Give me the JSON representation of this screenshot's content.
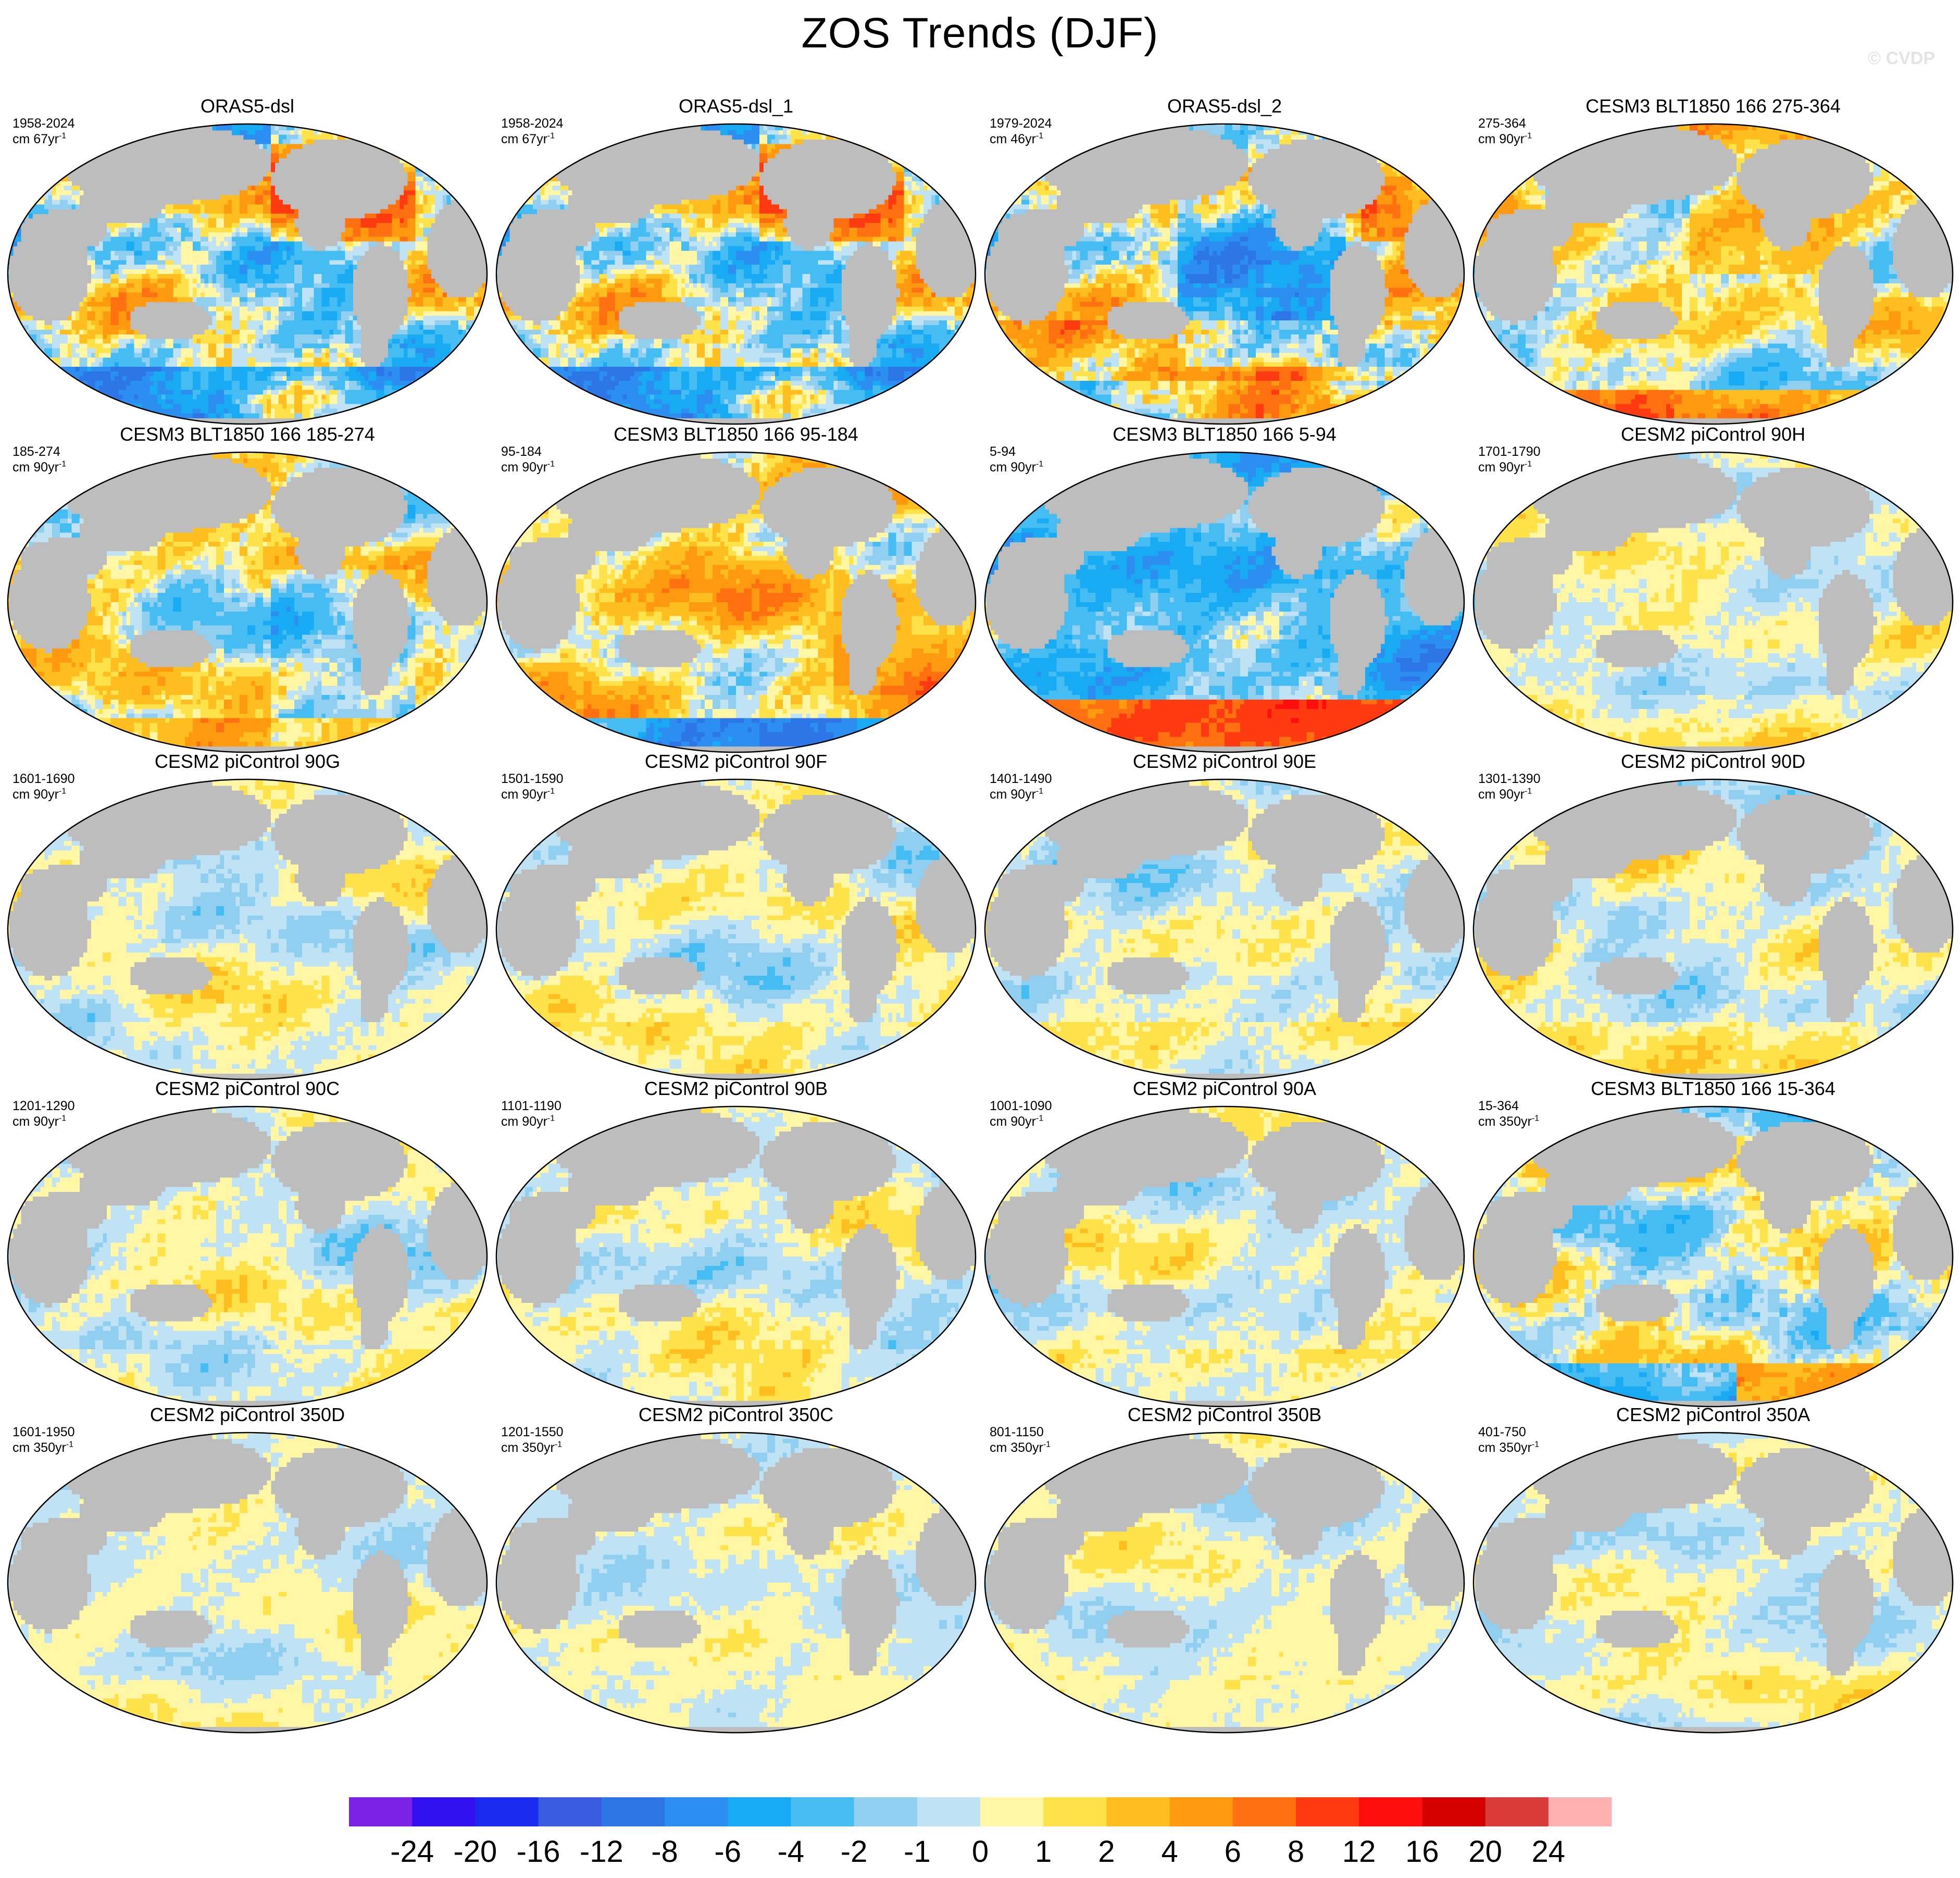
{
  "title": "ZOS Trends (DJF)",
  "watermark": "© CVDP",
  "chart_data": {
    "type": "heatmap",
    "projection": "Robinson (global, Pacific-centered)",
    "variable": "ZOS",
    "season": "DJF",
    "grid": "4 columns x 5 rows",
    "land_color": "#bdbdbd",
    "panels": [
      {
        "title": "ORAS5-dsl",
        "period": "1958-2024",
        "unit_base": "cm 67yr",
        "unit_exp": "-1",
        "signal": 2.6,
        "pattern": "obsA"
      },
      {
        "title": "ORAS5-dsl_1",
        "period": "1958-2024",
        "unit_base": "cm 67yr",
        "unit_exp": "-1",
        "signal": 2.6,
        "pattern": "obsA"
      },
      {
        "title": "ORAS5-dsl_2",
        "period": "1979-2024",
        "unit_base": "cm 46yr",
        "unit_exp": "-1",
        "signal": 2.6,
        "pattern": "obsB"
      },
      {
        "title": "CESM3 BLT1850 166 275-364",
        "period": "275-364",
        "unit_base": "cm 90yr",
        "unit_exp": "-1",
        "signal": 1.8,
        "pattern": "warmSouth"
      },
      {
        "title": "CESM3 BLT1850 166 185-274",
        "period": "185-274",
        "unit_base": "cm 90yr",
        "unit_exp": "-1",
        "signal": 1.8,
        "pattern": "mixedWarm"
      },
      {
        "title": "CESM3 BLT1850 166 95-184",
        "period": "95-184",
        "unit_base": "cm 90yr",
        "unit_exp": "-1",
        "signal": 1.8,
        "pattern": "warmColdSouth"
      },
      {
        "title": "CESM3 BLT1850 166 5-94",
        "period": "5-94",
        "unit_base": "cm 90yr",
        "unit_exp": "-1",
        "signal": 1.9,
        "pattern": "coldHotSouth"
      },
      {
        "title": "CESM2 piControl 90H",
        "period": "1701-1790",
        "unit_base": "cm 90yr",
        "unit_exp": "-1",
        "signal": 1.0,
        "pattern": "pi"
      },
      {
        "title": "CESM2 piControl 90G",
        "period": "1601-1690",
        "unit_base": "cm 90yr",
        "unit_exp": "-1",
        "signal": 1.0,
        "pattern": "pi"
      },
      {
        "title": "CESM2 piControl 90F",
        "period": "1501-1590",
        "unit_base": "cm 90yr",
        "unit_exp": "-1",
        "signal": 1.0,
        "pattern": "pi"
      },
      {
        "title": "CESM2 piControl 90E",
        "period": "1401-1490",
        "unit_base": "cm 90yr",
        "unit_exp": "-1",
        "signal": 1.0,
        "pattern": "pi"
      },
      {
        "title": "CESM2 piControl 90D",
        "period": "1301-1390",
        "unit_base": "cm 90yr",
        "unit_exp": "-1",
        "signal": 1.0,
        "pattern": "pi"
      },
      {
        "title": "CESM2 piControl 90C",
        "period": "1201-1290",
        "unit_base": "cm 90yr",
        "unit_exp": "-1",
        "signal": 1.0,
        "pattern": "pi"
      },
      {
        "title": "CESM2 piControl 90B",
        "period": "1101-1190",
        "unit_base": "cm 90yr",
        "unit_exp": "-1",
        "signal": 1.0,
        "pattern": "pi"
      },
      {
        "title": "CESM2 piControl 90A",
        "period": "1001-1090",
        "unit_base": "cm 90yr",
        "unit_exp": "-1",
        "signal": 1.0,
        "pattern": "pi"
      },
      {
        "title": "CESM3 BLT1850 166 15-364",
        "period": "15-364",
        "unit_base": "cm 350yr",
        "unit_exp": "-1",
        "signal": 1.6,
        "pattern": "coldHotSouth2"
      },
      {
        "title": "CESM2 piControl 350D",
        "period": "1601-1950",
        "unit_base": "cm 350yr",
        "unit_exp": "-1",
        "signal": 0.7,
        "pattern": "pi"
      },
      {
        "title": "CESM2 piControl 350C",
        "period": "1201-1550",
        "unit_base": "cm 350yr",
        "unit_exp": "-1",
        "signal": 0.7,
        "pattern": "pi"
      },
      {
        "title": "CESM2 piControl 350B",
        "period": "801-1150",
        "unit_base": "cm 350yr",
        "unit_exp": "-1",
        "signal": 0.7,
        "pattern": "pi"
      },
      {
        "title": "CESM2 piControl 350A",
        "period": "401-750",
        "unit_base": "cm 350yr",
        "unit_exp": "-1",
        "signal": 0.8,
        "pattern": "pi"
      }
    ],
    "colorbar": {
      "labels": [
        "-24",
        "-20",
        "-16",
        "-12",
        "-8",
        "-6",
        "-4",
        "-2",
        "-1",
        "0",
        "1",
        "2",
        "4",
        "6",
        "8",
        "12",
        "16",
        "20",
        "24"
      ],
      "colors": [
        "#7b22e6",
        "#3311ee",
        "#1a2aee",
        "#3a5ae0",
        "#2d76e8",
        "#2b8ef0",
        "#18aaf2",
        "#45bcf2",
        "#90cff0",
        "#bfe3f5",
        "#fff7a6",
        "#ffe14a",
        "#ffbe1f",
        "#ff9a10",
        "#ff7010",
        "#ff3a10",
        "#ff0e0e",
        "#d40000",
        "#d93a3a",
        "#ffb0b0"
      ]
    }
  }
}
